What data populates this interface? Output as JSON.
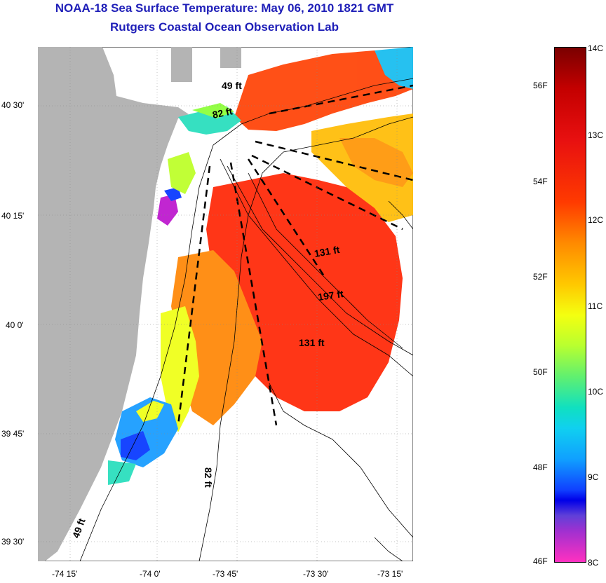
{
  "header": {
    "title": "NOAA-18 Sea Surface Temperature:  May 06, 2010 1821 GMT",
    "subtitle": "Rutgers Coastal Ocean Observation Lab"
  },
  "axes": {
    "lat_labels": [
      "40 30'",
      "40 15'",
      "40 0'",
      "39 45'",
      "39 30'"
    ],
    "lon_labels": [
      "-74 15'",
      "-74 0'",
      "-73 45'",
      "-73 30'",
      "-73 15'"
    ],
    "lat_range": [
      "39 26'",
      "40 40'"
    ],
    "lon_range": [
      "-74 22'",
      "-73 14'"
    ]
  },
  "colorbar": {
    "fahrenheit_labels": [
      "56F",
      "54F",
      "52F",
      "50F",
      "48F",
      "46F"
    ],
    "celsius_labels": [
      "14C",
      "13C",
      "12C",
      "11C",
      "10C",
      "9C",
      "8C"
    ],
    "range_c": [
      8,
      14
    ]
  },
  "depth_labels": [
    "49 ft",
    "82 ft",
    "131 ft",
    "197 ft",
    "131 ft",
    "82 ft",
    "49 ft"
  ],
  "colors": {
    "land": "#b4b4b4",
    "title": "#1f1fb8",
    "warm": "#ff3a10",
    "cold": "#1040ff"
  }
}
